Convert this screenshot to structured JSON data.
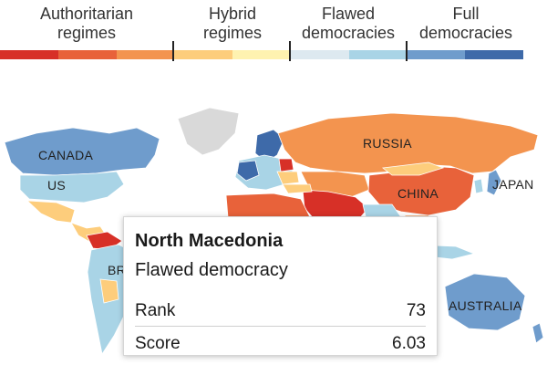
{
  "legend": {
    "categories": [
      {
        "label": "Authoritarian\nregimes",
        "colors": [
          "#d73027",
          "#e8623a",
          "#f3944f"
        ]
      },
      {
        "label": "Hybrid\nregimes",
        "colors": [
          "#fdcd7c",
          "#fef2b0"
        ]
      },
      {
        "label": "Flawed\ndemocracies",
        "colors": [
          "#dde9f0",
          "#a9d4e6"
        ]
      },
      {
        "label": "Full\ndemocracies",
        "colors": [
          "#6f9ccc",
          "#3e6aa9"
        ]
      }
    ]
  },
  "map": {
    "labels": {
      "canada": "CANADA",
      "us": "US",
      "russia": "RUSSIA",
      "china": "CHINA",
      "japan": "JAPAN",
      "australia": "AUSTRALIA",
      "brazil_partial": "BR"
    },
    "colors": {
      "canada": "#6f9ccc",
      "us": "#a9d4e6",
      "greenland": "#d9d9d9",
      "russia": "#f3944f",
      "china": "#e8623a",
      "australia": "#6f9ccc",
      "japan": "#6f9ccc",
      "europe_full": "#3e6aa9",
      "europe_flawed": "#a9d4e6",
      "mideast": "#d73027",
      "africa_auth": "#e8623a",
      "hybrid": "#fdcd7c",
      "ocean": "#ffffff"
    }
  },
  "tooltip": {
    "country": "North Macedonia",
    "category": "Flawed democracy",
    "rank_label": "Rank",
    "rank_value": "73",
    "score_label": "Score",
    "score_value": "6.03"
  }
}
